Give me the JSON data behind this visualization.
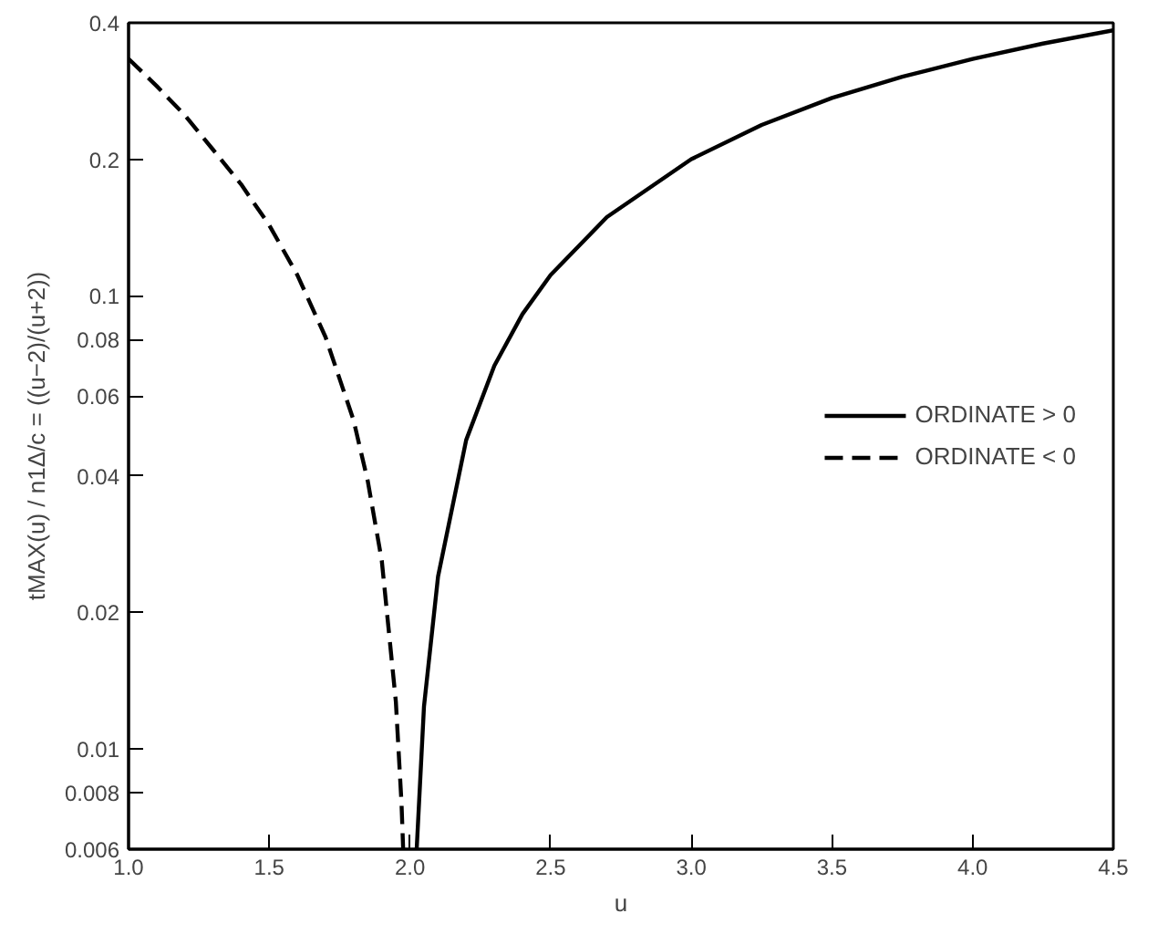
{
  "chart_data": {
    "type": "line",
    "xlabel": "u",
    "ylabel": "tMAX(u) / n1Δ/c = ((u−2)/(u+2))",
    "log": "y",
    "grid": false,
    "legend": "right",
    "xlim": [
      1.0,
      4.5
    ],
    "ylim": [
      0.006,
      0.4
    ],
    "xticks": [
      {
        "value": 1,
        "label": "1.0"
      },
      {
        "value": 1.5,
        "label": "1.5"
      },
      {
        "value": 2,
        "label": "2.0"
      },
      {
        "value": 2.5,
        "label": "2.5"
      },
      {
        "value": 3,
        "label": "3.0"
      },
      {
        "value": 3.5,
        "label": "3.5"
      },
      {
        "value": 4,
        "label": "4.0"
      },
      {
        "value": 4.5,
        "label": "4.5"
      }
    ],
    "yticks": [
      0.006,
      0.008,
      0.01,
      0.02,
      0.04,
      0.06,
      0.08,
      0.1,
      0.2,
      0.4
    ],
    "series": [
      {
        "name": "ORDINATE > 0",
        "color": "#000000",
        "line_style": "solid",
        "x": [
          2.024,
          2.05,
          2.1,
          2.2,
          2.3,
          2.4,
          2.5,
          2.7,
          3.0,
          3.25,
          3.5,
          3.75,
          4.0,
          4.25,
          4.5
        ],
        "values": [
          0.006,
          0.0124,
          0.024,
          0.048,
          0.07,
          0.091,
          0.111,
          0.149,
          0.2,
          0.238,
          0.273,
          0.304,
          0.333,
          0.36,
          0.385
        ]
      },
      {
        "name": "ORDINATE < 0",
        "color": "#000000",
        "line_style": "dashed",
        "x": [
          1.0,
          1.1,
          1.2,
          1.3,
          1.4,
          1.5,
          1.6,
          1.7,
          1.8,
          1.85,
          1.9,
          1.95,
          1.97,
          1.976
        ],
        "values": [
          0.333,
          0.29,
          0.25,
          0.21,
          0.176,
          0.143,
          0.111,
          0.081,
          0.053,
          0.039,
          0.026,
          0.0127,
          0.0076,
          0.006
        ]
      }
    ]
  }
}
